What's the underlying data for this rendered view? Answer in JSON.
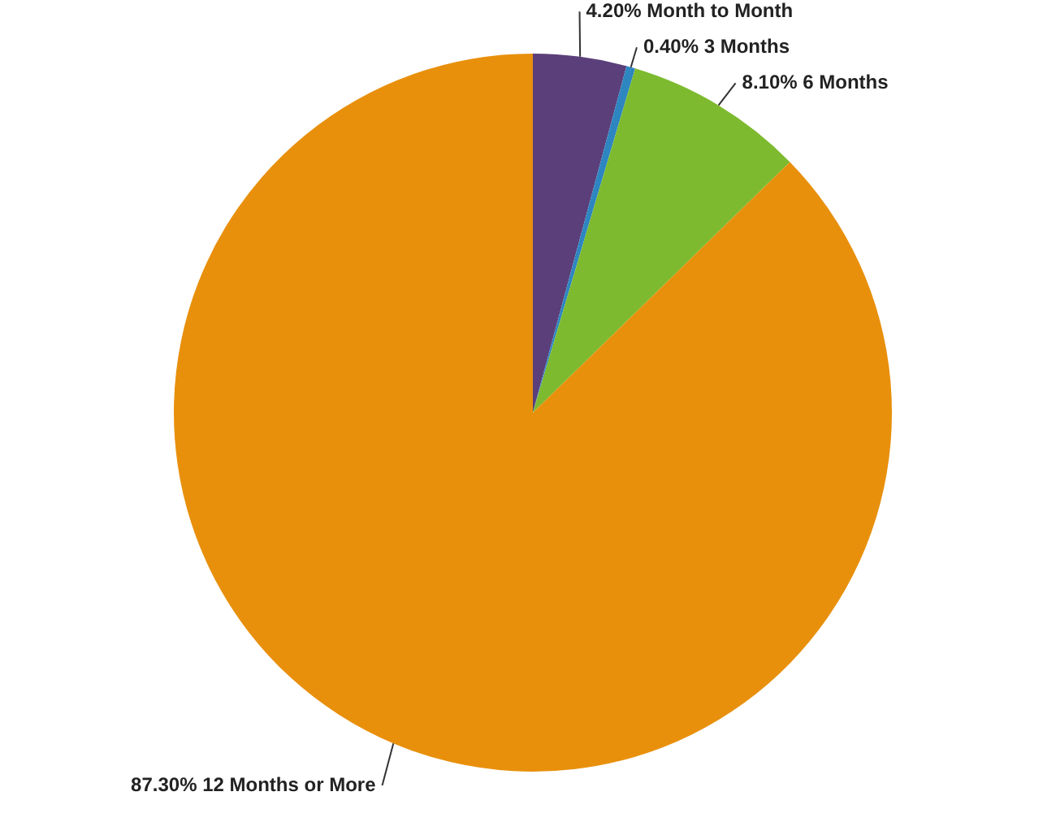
{
  "chart_data": {
    "type": "pie",
    "categories": [
      "Month to Month",
      "3 Months",
      "6 Months",
      "12 Months or More"
    ],
    "values": [
      4.2,
      0.4,
      8.1,
      87.3
    ],
    "value_labels": [
      "4.20%",
      "0.40%",
      "8.10%",
      "87.30%"
    ],
    "colors": [
      "#5b3f7a",
      "#2e86c1",
      "#7dba2f",
      "#e8900c"
    ]
  }
}
